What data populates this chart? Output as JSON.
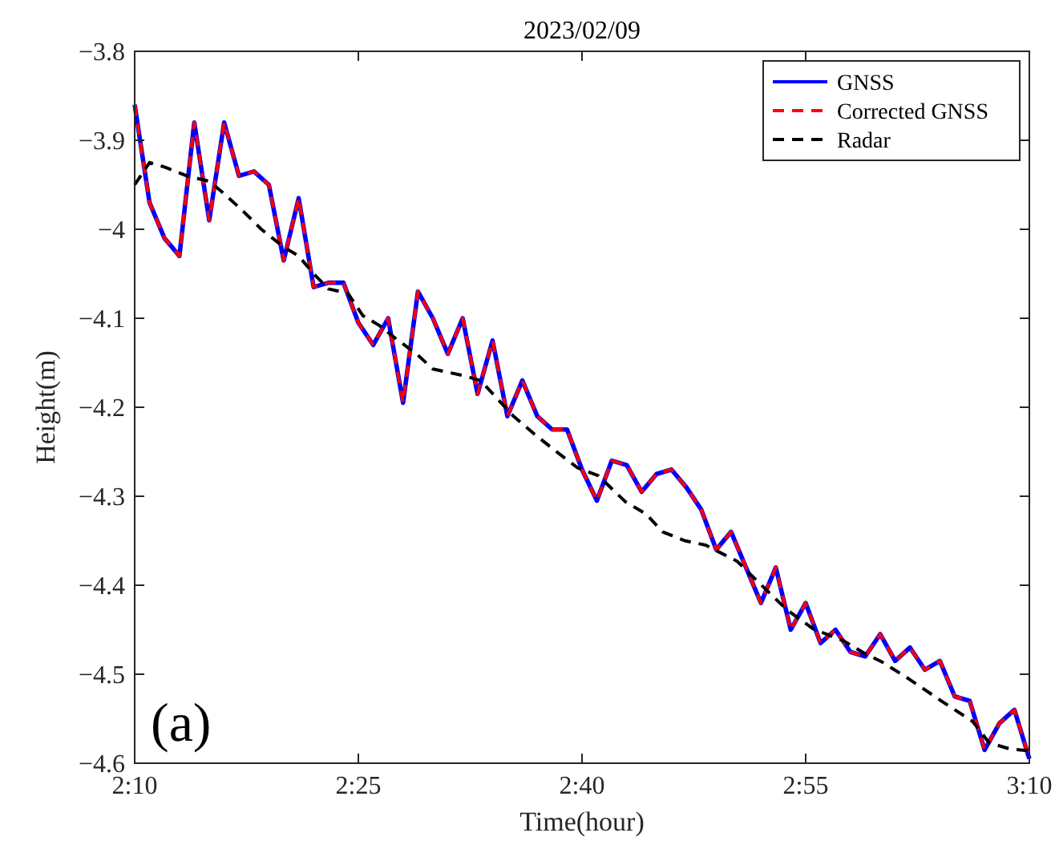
{
  "chart_data": {
    "type": "line",
    "title": "2023/02/09",
    "xlabel": "Time(hour)",
    "ylabel": "Height(m)",
    "x": [
      2.1667,
      2.1833,
      2.2,
      2.2167,
      2.2333,
      2.25,
      2.2667,
      2.2833,
      2.3,
      2.3167,
      2.3333,
      2.35,
      2.3667,
      2.3833,
      2.4,
      2.4167,
      2.4333,
      2.45,
      2.4667,
      2.4833,
      2.5,
      2.5167,
      2.5333,
      2.55,
      2.5667,
      2.5833,
      2.6,
      2.6167,
      2.6333,
      2.65,
      2.6667,
      2.6833,
      2.7,
      2.7167,
      2.7333,
      2.75,
      2.7667,
      2.7833,
      2.8,
      2.8167,
      2.8333,
      2.85,
      2.8667,
      2.8833,
      2.9,
      2.9167,
      2.9333,
      2.95,
      2.9667,
      2.9833,
      3.0,
      3.0167,
      3.0333,
      3.05,
      3.0667,
      3.0833,
      3.1,
      3.1167,
      3.1333,
      3.15,
      3.1667
    ],
    "series": [
      {
        "name": "GNSS",
        "color": "#0000ff",
        "line_style": "solid",
        "values": [
          -3.86,
          -3.97,
          -4.01,
          -4.03,
          -3.88,
          -3.99,
          -3.88,
          -3.94,
          -3.935,
          -3.95,
          -4.035,
          -3.965,
          -4.065,
          -4.06,
          -4.06,
          -4.105,
          -4.13,
          -4.1,
          -4.195,
          -4.07,
          -4.1,
          -4.14,
          -4.1,
          -4.185,
          -4.125,
          -4.21,
          -4.17,
          -4.21,
          -4.225,
          -4.225,
          -4.27,
          -4.305,
          -4.26,
          -4.265,
          -4.295,
          -4.275,
          -4.27,
          -4.29,
          -4.315,
          -4.36,
          -4.34,
          -4.38,
          -4.42,
          -4.38,
          -4.45,
          -4.42,
          -4.465,
          -4.45,
          -4.475,
          -4.48,
          -4.455,
          -4.485,
          -4.47,
          -4.495,
          -4.485,
          -4.525,
          -4.53,
          -4.585,
          -4.555,
          -4.54,
          -4.595
        ]
      },
      {
        "name": "Corrected GNSS",
        "color": "#ff0000",
        "line_style": "dashed",
        "values": [
          -3.86,
          -3.97,
          -4.01,
          -4.03,
          -3.88,
          -3.99,
          -3.88,
          -3.94,
          -3.935,
          -3.95,
          -4.035,
          -3.965,
          -4.065,
          -4.06,
          -4.06,
          -4.105,
          -4.13,
          -4.1,
          -4.195,
          -4.07,
          -4.1,
          -4.14,
          -4.1,
          -4.185,
          -4.125,
          -4.21,
          -4.17,
          -4.21,
          -4.225,
          -4.225,
          -4.27,
          -4.305,
          -4.26,
          -4.265,
          -4.295,
          -4.275,
          -4.27,
          -4.29,
          -4.315,
          -4.36,
          -4.34,
          -4.38,
          -4.42,
          -4.38,
          -4.45,
          -4.42,
          -4.465,
          -4.45,
          -4.475,
          -4.48,
          -4.455,
          -4.485,
          -4.47,
          -4.495,
          -4.485,
          -4.525,
          -4.53,
          -4.585,
          -4.555,
          -4.54,
          -4.595
        ]
      },
      {
        "name": "Radar",
        "color": "#000000",
        "line_style": "dashed",
        "x": [
          2.1667,
          2.1833,
          2.2,
          2.225,
          2.25,
          2.2667,
          2.2883,
          2.3083,
          2.3333,
          2.35,
          2.3667,
          2.3833,
          2.405,
          2.4217,
          2.44,
          2.46,
          2.4817,
          2.5,
          2.5367,
          2.5533,
          2.5717,
          2.59,
          2.6133,
          2.6383,
          2.6617,
          2.685,
          2.715,
          2.7383,
          2.7567,
          2.7817,
          2.805,
          2.84,
          2.8633,
          2.895,
          2.925,
          2.96,
          2.9833,
          3.0017,
          3.0317,
          3.0683,
          3.1033,
          3.1217,
          3.145,
          3.1667
        ],
        "values": [
          -3.95,
          -3.925,
          -3.93,
          -3.94,
          -3.946,
          -3.96,
          -3.98,
          -4.0,
          -4.02,
          -4.03,
          -4.05,
          -4.067,
          -4.072,
          -4.097,
          -4.108,
          -4.124,
          -4.14,
          -4.157,
          -4.165,
          -4.17,
          -4.19,
          -4.21,
          -4.23,
          -4.25,
          -4.268,
          -4.277,
          -4.306,
          -4.32,
          -4.34,
          -4.35,
          -4.355,
          -4.373,
          -4.396,
          -4.427,
          -4.449,
          -4.463,
          -4.477,
          -4.486,
          -4.505,
          -4.53,
          -4.553,
          -4.577,
          -4.584,
          -4.586
        ]
      }
    ],
    "xlim": [
      2.1667,
      3.1667
    ],
    "xticks": [
      {
        "value": 2.1667,
        "label": "2:10"
      },
      {
        "value": 2.4167,
        "label": "2:25"
      },
      {
        "value": 2.6667,
        "label": "2:40"
      },
      {
        "value": 2.9167,
        "label": "2:55"
      },
      {
        "value": 3.1667,
        "label": "3:10"
      }
    ],
    "ylim": [
      -4.6,
      -3.8
    ],
    "yticks": [
      {
        "value": -4.6,
        "label": "−4.6"
      },
      {
        "value": -4.5,
        "label": "−4.5"
      },
      {
        "value": -4.4,
        "label": "−4.4"
      },
      {
        "value": -4.3,
        "label": "−4.3"
      },
      {
        "value": -4.2,
        "label": "−4.2"
      },
      {
        "value": -4.1,
        "label": "−4.1"
      },
      {
        "value": -4,
        "label": "−4"
      },
      {
        "value": -3.9,
        "label": "−3.9"
      },
      {
        "value": -3.8,
        "label": "−3.8"
      }
    ],
    "grid": false,
    "legend": "top right",
    "marker": "none",
    "annotations": [
      "(a)"
    ]
  }
}
